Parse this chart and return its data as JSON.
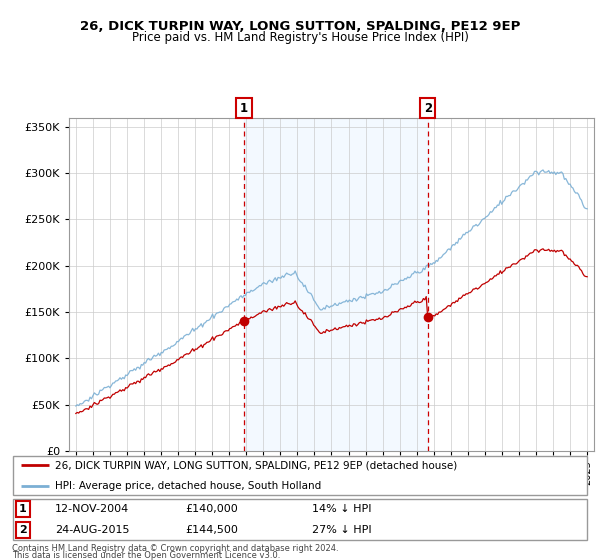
{
  "title": "26, DICK TURPIN WAY, LONG SUTTON, SPALDING, PE12 9EP",
  "subtitle": "Price paid vs. HM Land Registry's House Price Index (HPI)",
  "legend_line1": "26, DICK TURPIN WAY, LONG SUTTON, SPALDING, PE12 9EP (detached house)",
  "legend_line2": "HPI: Average price, detached house, South Holland",
  "footnote1": "Contains HM Land Registry data © Crown copyright and database right 2024.",
  "footnote2": "This data is licensed under the Open Government Licence v3.0.",
  "sale1_date": "12-NOV-2004",
  "sale1_price": "£140,000",
  "sale1_hpi": "14% ↓ HPI",
  "sale2_date": "24-AUG-2015",
  "sale2_price": "£144,500",
  "sale2_hpi": "27% ↓ HPI",
  "hpi_color": "#7bafd4",
  "price_color": "#c00000",
  "vline_color": "#cc0000",
  "bg_color": "#ddeeff",
  "ylim": [
    0,
    350000
  ],
  "yticks": [
    0,
    50000,
    100000,
    150000,
    200000,
    250000,
    300000,
    350000
  ],
  "sale1_x": 2004.87,
  "sale2_x": 2015.65,
  "price1": 140000,
  "price2": 144500
}
